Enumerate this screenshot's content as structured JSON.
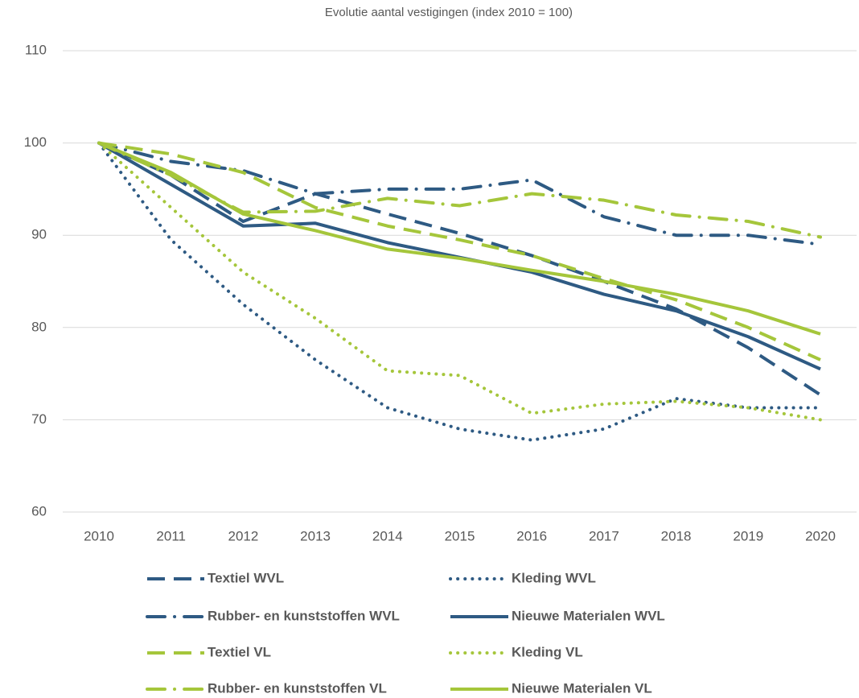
{
  "chart_data": {
    "type": "line",
    "title": "Evolutie aantal vestigingen (index 2010 = 100)",
    "categories": [
      "2010",
      "2011",
      "2012",
      "2013",
      "2014",
      "2015",
      "2016",
      "2017",
      "2018",
      "2019",
      "2020"
    ],
    "ylim": [
      60,
      110
    ],
    "yticks": [
      60,
      70,
      80,
      90,
      100,
      110
    ],
    "grid": true,
    "legend": "bottom",
    "series": [
      {
        "name": "Textiel WVL",
        "color": "#2e5a83",
        "style": "dash",
        "values": [
          100,
          96.5,
          91.5,
          94.5,
          92.3,
          90.2,
          87.8,
          85,
          82,
          77.8,
          72.7
        ]
      },
      {
        "name": "Kleding WVL",
        "color": "#2e5a83",
        "style": "dot",
        "values": [
          100,
          89.5,
          82.5,
          76.5,
          71.3,
          69,
          67.8,
          69,
          72.3,
          71.3,
          71.3
        ]
      },
      {
        "name": "Rubber- en kunststoffen WVL",
        "color": "#2e5a83",
        "style": "dashdot",
        "values": [
          100,
          98,
          97,
          94.5,
          95,
          95,
          96,
          92,
          90,
          90,
          89
        ]
      },
      {
        "name": "Nieuwe Materialen WVL",
        "color": "#2e5a83",
        "style": "solid",
        "values": [
          100,
          95.5,
          91,
          91.3,
          89.2,
          87.6,
          86,
          83.6,
          81.8,
          79,
          75.5
        ]
      },
      {
        "name": "Textiel VL",
        "color": "#a5c63b",
        "style": "dash",
        "values": [
          100,
          98.8,
          96.8,
          93,
          91,
          89.5,
          87.8,
          85.3,
          83,
          80,
          76.5
        ]
      },
      {
        "name": "Kleding VL",
        "color": "#a5c63b",
        "style": "dot",
        "values": [
          100,
          93,
          86,
          81,
          75.3,
          74.8,
          70.7,
          71.7,
          72,
          71.3,
          70
        ]
      },
      {
        "name": "Rubber- en kunststoffen VL",
        "color": "#a5c63b",
        "style": "dashdot",
        "values": [
          100,
          96.5,
          92.5,
          92.6,
          94,
          93.2,
          94.5,
          93.8,
          92.2,
          91.5,
          89.8
        ]
      },
      {
        "name": "Nieuwe Materialen VL",
        "color": "#a5c63b",
        "style": "solid",
        "values": [
          100,
          96.8,
          92.3,
          90.5,
          88.5,
          87.5,
          86.2,
          85,
          83.6,
          81.8,
          79.3
        ]
      }
    ]
  }
}
